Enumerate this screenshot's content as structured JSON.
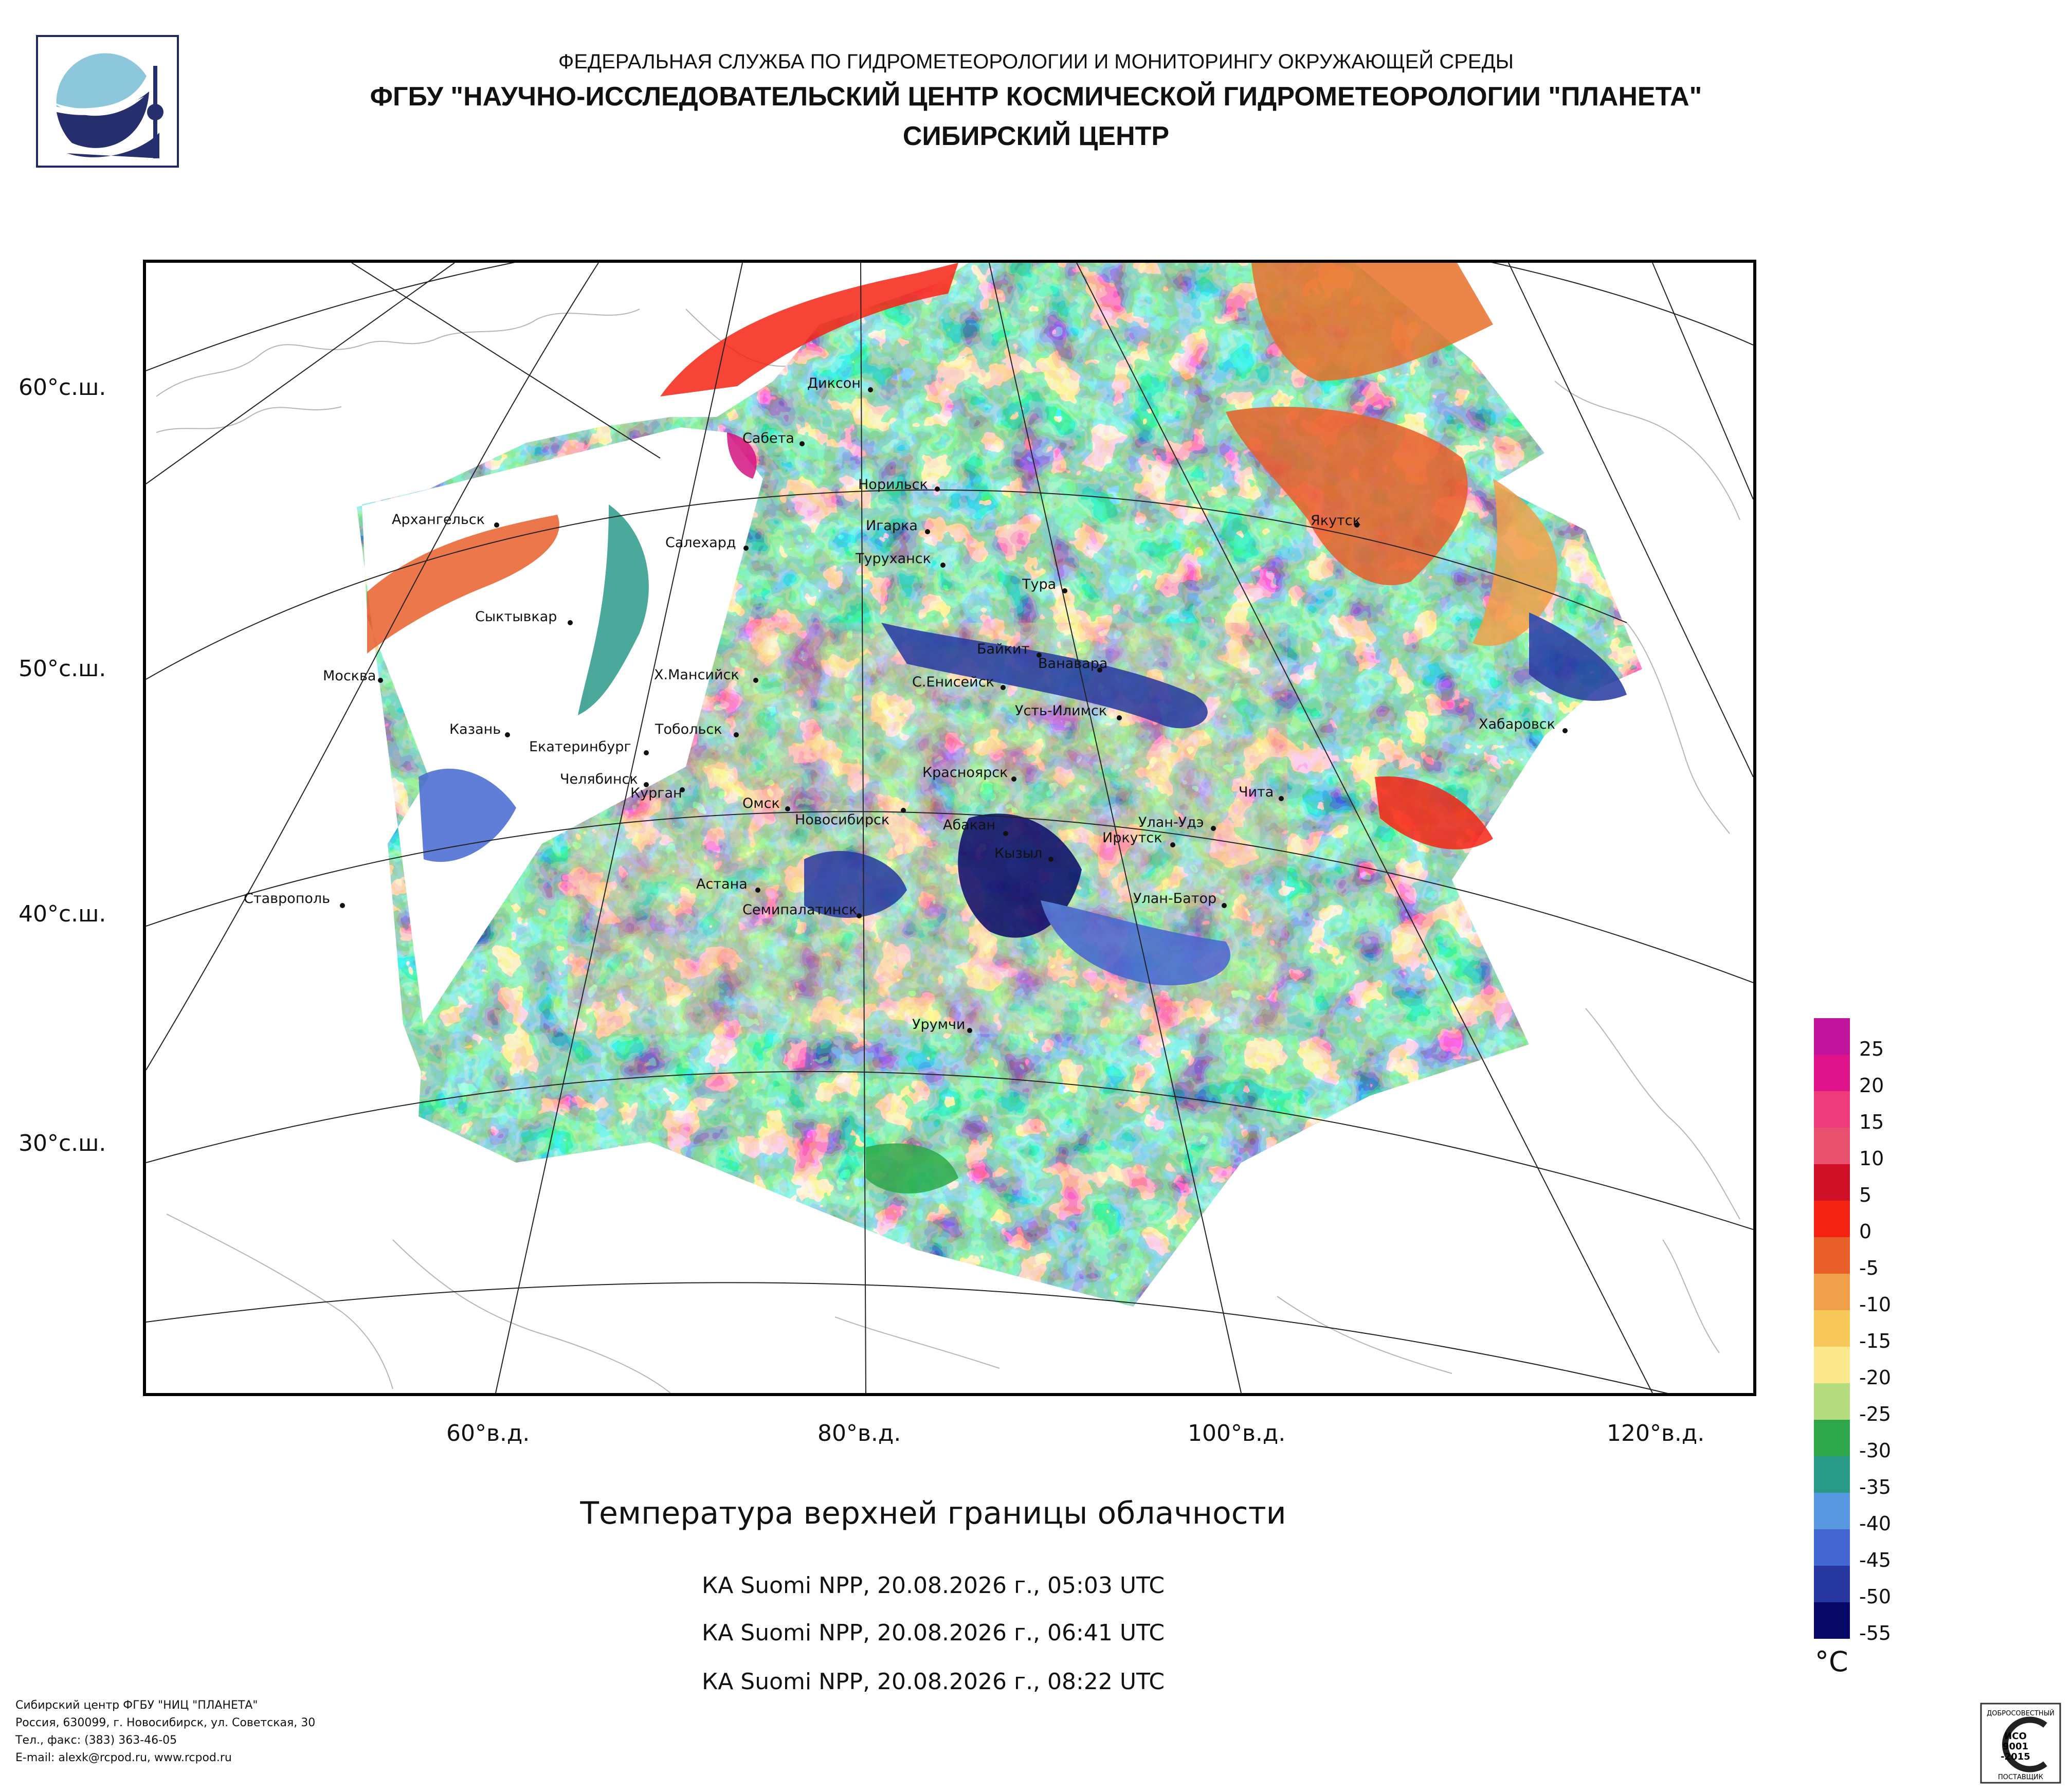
{
  "header": {
    "line1": "ФЕДЕРАЛЬНАЯ СЛУЖБА ПО ГИДРОМЕТЕОРОЛОГИИ И МОНИТОРИНГУ ОКРУЖАЮЩЕЙ СРЕДЫ",
    "line2": "ФГБУ \"НАУЧНО-ИССЛЕДОВАТЕЛЬСКИЙ ЦЕНТР КОСМИЧЕСКОЙ ГИДРОМЕТЕОРОЛОГИИ \"ПЛАНЕТА\"",
    "line3": "СИБИРСКИЙ ЦЕНТР"
  },
  "map": {
    "lat_labels": [
      "60°с.ш.",
      "50°с.ш.",
      "40°с.ш.",
      "30°с.ш."
    ],
    "lon_labels": [
      "60°в.д.",
      "80°в.д.",
      "100°в.д.",
      "120°в.д."
    ],
    "cities": [
      "Диксон",
      "Сабета",
      "Норильск",
      "Игарка",
      "Архангельск",
      "Салехард",
      "Туруханск",
      "Якутск",
      "Тура",
      "Сыктывкар",
      "Байкит",
      "Ванавара",
      "Москва",
      "Х.Мансийск",
      "С.Енисейск",
      "Усть-Илимск",
      "Хабаровск",
      "Казань",
      "Тобольск",
      "Екатеринбург",
      "Челябинск",
      "Курган",
      "Красноярск",
      "Омск",
      "Новосибирск",
      "Чита",
      "Абакан",
      "Улан-Удэ",
      "Иркутск",
      "Кызыл",
      "Астана",
      "Ставрополь",
      "Улан-Батор",
      "Семипалатинск",
      "Урумчи"
    ]
  },
  "title": "Температура верхней границы облачности",
  "passes": [
    "КА Suomi NPP, 20.08.2026 г., 05:03 UTC",
    "КА Suomi NPP, 20.08.2026 г., 06:41 UTC",
    "КА Suomi NPP, 20.08.2026 г., 08:22 UTC"
  ],
  "legend": {
    "unit": "°С",
    "ticks": [
      "25",
      "20",
      "15",
      "10",
      "5",
      "0",
      "-5",
      "-10",
      "-15",
      "-20",
      "-25",
      "-30",
      "-35",
      "-40",
      "-45",
      "-50",
      "-55"
    ],
    "colors": [
      "#c2139c",
      "#e0148a",
      "#ee3b7b",
      "#e8506e",
      "#cf1128",
      "#f52314",
      "#e85f2a",
      "#f0a04a",
      "#f8c85a",
      "#fbe88c",
      "#b5dc7e",
      "#2ea84a",
      "#2a9a88",
      "#5898e0",
      "#4466d0",
      "#2638a0",
      "#080868"
    ]
  },
  "footer": {
    "line1": "Сибирский центр ФГБУ \"НИЦ \"ПЛАНЕТА\"",
    "line2": "Россия, 630099, г. Новосибирск, ул. Советская, 30",
    "line3": "Тел., факс: (383) 363-46-05",
    "line4": "E-mail: alexk@rcpod.ru, www.rcpod.ru"
  },
  "cert": {
    "top": "ДОБРОСОВЕСТНЫЙ",
    "iso1": "ИСО",
    "iso2": "9001",
    "iso3": "-2015",
    "bottom": "ПОСТАВЩИК"
  }
}
